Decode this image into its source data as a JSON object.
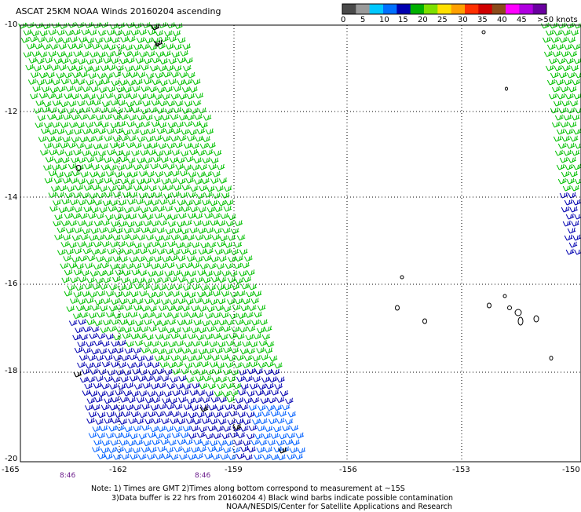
{
  "title": "ASCAT 25KM NOAA Winds 20160204 ascending",
  "legend": {
    "colors": [
      "#4a4a4a",
      "#9a9a9a",
      "#00c8ff",
      "#0070ff",
      "#0000b0",
      "#00b000",
      "#7ee000",
      "#ffe000",
      "#ffa000",
      "#ff3000",
      "#d00000",
      "#8b4a1a",
      "#ff00ff",
      "#b000e0",
      "#6a00a0"
    ],
    "labels": [
      "0",
      "5",
      "10",
      "15",
      "20",
      "25",
      "30",
      "35",
      "40",
      "45",
      ">50 knots"
    ]
  },
  "axes": {
    "y_labels": [
      "-10",
      "-12",
      "-14",
      "-16",
      "-18",
      "-20"
    ],
    "x_labels": [
      "-165",
      "-162",
      "-159",
      "-156",
      "-153",
      "-150"
    ],
    "times": [
      "8:46",
      "8:46"
    ]
  },
  "notes": {
    "line1": "Note: 1) Times are GMT 2)Times along bottom correspond to measurement at ~15S",
    "line2": "3)Data buffer is 22 hrs from 20160204 4) Black wind barbs indicate possible contamination",
    "line3": "NOAA/NESDIS/Center for Satellite Applications and Research"
  },
  "barb_colors": {
    "green": "#00c000",
    "navy": "#0000b0",
    "blue": "#0060ff",
    "black": "#000000"
  }
}
